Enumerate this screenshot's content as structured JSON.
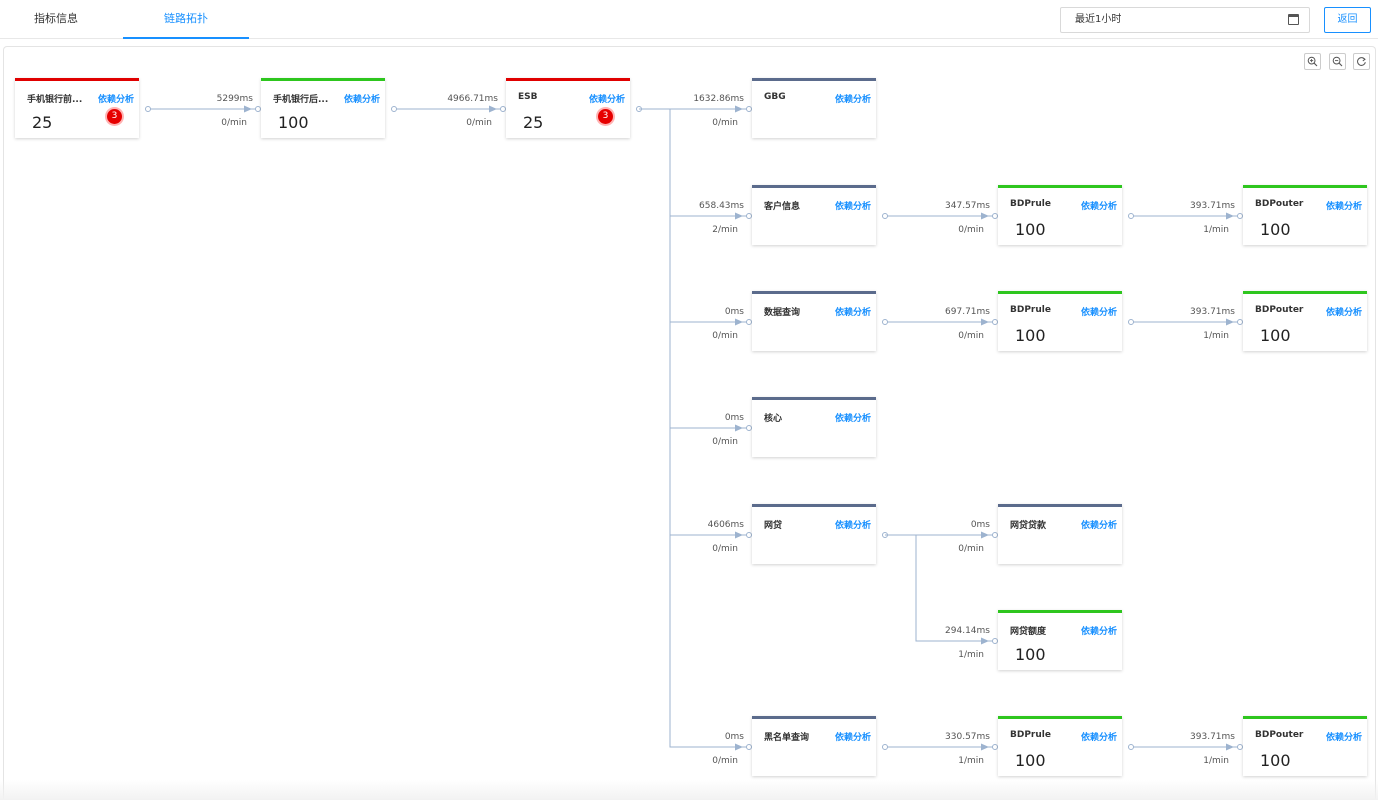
{
  "tabs": [
    {
      "label": "指标信息",
      "active": false
    },
    {
      "label": "链路拓扑",
      "active": true
    }
  ],
  "time_range": {
    "value": "最近1小时",
    "icon": "calendar-icon"
  },
  "back_label": "返回",
  "zoom_controls": [
    "zoom-in-icon",
    "zoom-out-icon",
    "reset-icon"
  ],
  "link_label": "依赖分析",
  "status_colors": {
    "red": "#e00000",
    "green": "#2ec61e",
    "default": "#5b6b8c",
    "link": "#1890ff",
    "badge": "#e60000"
  },
  "nodes": [
    {
      "id": "mobile-front",
      "name": "手机银行前...",
      "score": "25",
      "status": "red",
      "alerts": "3"
    },
    {
      "id": "mobile-back",
      "name": "手机银行后...",
      "score": "100",
      "status": "green"
    },
    {
      "id": "esb",
      "name": "ESB",
      "score": "25",
      "status": "red",
      "alerts": "3"
    },
    {
      "id": "gbg",
      "name": "GBG",
      "score": "",
      "status": "default"
    },
    {
      "id": "customer",
      "name": "客户信息",
      "score": "",
      "status": "default"
    },
    {
      "id": "bdprule-1",
      "name": "BDPrule",
      "score": "100",
      "status": "green"
    },
    {
      "id": "bdpouter-1",
      "name": "BDPouter",
      "score": "100",
      "status": "green"
    },
    {
      "id": "dataquery",
      "name": "数据查询",
      "score": "",
      "status": "default"
    },
    {
      "id": "bdprule-2",
      "name": "BDPrule",
      "score": "100",
      "status": "green"
    },
    {
      "id": "bdpouter-2",
      "name": "BDPouter",
      "score": "100",
      "status": "green"
    },
    {
      "id": "core",
      "name": "核心",
      "score": "",
      "status": "default"
    },
    {
      "id": "netloan",
      "name": "网贷",
      "score": "",
      "status": "default"
    },
    {
      "id": "netloan-loan",
      "name": "网贷贷款",
      "score": "",
      "status": "default"
    },
    {
      "id": "netloan-limit",
      "name": "网贷额度",
      "score": "100",
      "status": "green"
    },
    {
      "id": "blacklist",
      "name": "黑名单查询",
      "score": "",
      "status": "default"
    },
    {
      "id": "bdprule-3",
      "name": "BDPrule",
      "score": "100",
      "status": "green"
    },
    {
      "id": "bdpouter-3",
      "name": "BDPouter",
      "score": "100",
      "status": "green"
    }
  ],
  "edges": [
    {
      "from": "mobile-front",
      "to": "mobile-back",
      "latency": "5299ms",
      "rate": "0/min"
    },
    {
      "from": "mobile-back",
      "to": "esb",
      "latency": "4966.71ms",
      "rate": "0/min"
    },
    {
      "from": "esb",
      "to": "gbg",
      "latency": "1632.86ms",
      "rate": "0/min"
    },
    {
      "from": "esb",
      "to": "customer",
      "latency": "658.43ms",
      "rate": "2/min"
    },
    {
      "from": "customer",
      "to": "bdprule-1",
      "latency": "347.57ms",
      "rate": "0/min"
    },
    {
      "from": "bdprule-1",
      "to": "bdpouter-1",
      "latency": "393.71ms",
      "rate": "1/min"
    },
    {
      "from": "esb",
      "to": "dataquery",
      "latency": "0ms",
      "rate": "0/min"
    },
    {
      "from": "dataquery",
      "to": "bdprule-2",
      "latency": "697.71ms",
      "rate": "0/min"
    },
    {
      "from": "bdprule-2",
      "to": "bdpouter-2",
      "latency": "393.71ms",
      "rate": "1/min"
    },
    {
      "from": "esb",
      "to": "core",
      "latency": "0ms",
      "rate": "0/min"
    },
    {
      "from": "esb",
      "to": "netloan",
      "latency": "4606ms",
      "rate": "0/min"
    },
    {
      "from": "netloan",
      "to": "netloan-loan",
      "latency": "0ms",
      "rate": "0/min"
    },
    {
      "from": "netloan",
      "to": "netloan-limit",
      "latency": "294.14ms",
      "rate": "1/min"
    },
    {
      "from": "esb",
      "to": "blacklist",
      "latency": "0ms",
      "rate": "0/min"
    },
    {
      "from": "blacklist",
      "to": "bdprule-3",
      "latency": "330.57ms",
      "rate": "1/min"
    },
    {
      "from": "bdprule-3",
      "to": "bdpouter-3",
      "latency": "393.71ms",
      "rate": "1/min"
    }
  ]
}
